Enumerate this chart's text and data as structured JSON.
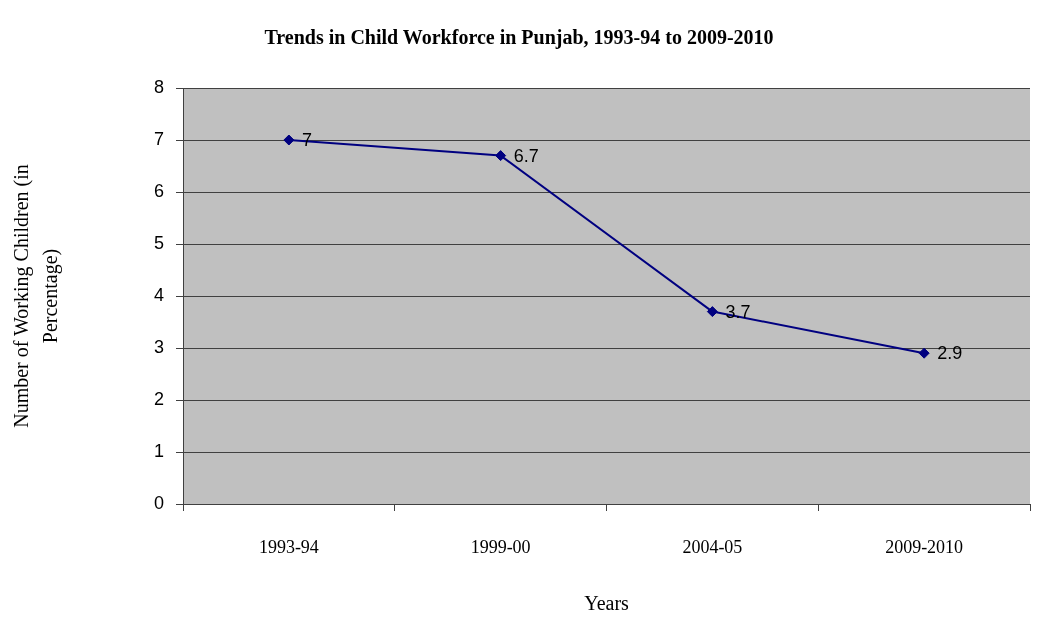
{
  "chart_data": {
    "type": "line",
    "title": "Trends in Child Workforce in Punjab, 1993-94 to 2009-2010",
    "xlabel": "Years",
    "ylabel": "Number of Working Children (in Percentage)",
    "categories": [
      "1993-94",
      "1999-00",
      "2004-05",
      "2009-2010"
    ],
    "values": [
      7,
      6.7,
      3.7,
      2.9
    ],
    "color": "#000080",
    "ylim": [
      0,
      8
    ],
    "yticks": [
      0,
      1,
      2,
      3,
      4,
      5,
      6,
      7,
      8
    ],
    "grid": "y",
    "marker": "diamond",
    "line_style": "solid",
    "data_labels": true
  }
}
